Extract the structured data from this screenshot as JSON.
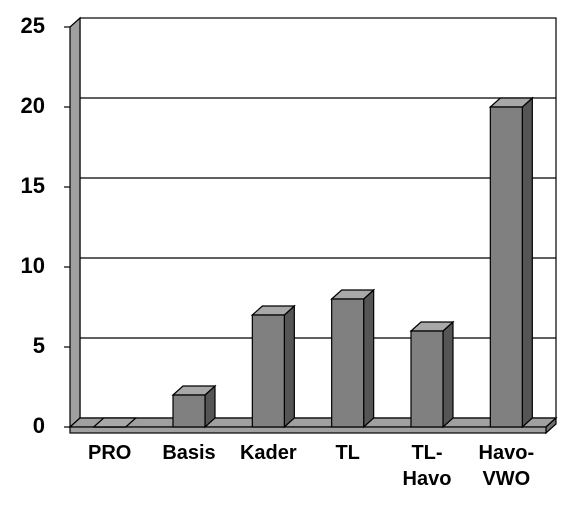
{
  "chart_data": {
    "type": "bar3d",
    "categories": [
      "PRO",
      "Basis",
      "Kader",
      "TL",
      "TL-Havo",
      "Havo-VWO"
    ],
    "values": [
      0,
      2,
      7,
      8,
      6,
      20
    ],
    "color": "#808080",
    "ylim": [
      0,
      25
    ],
    "yticks": [
      0,
      5,
      10,
      15,
      20,
      25
    ],
    "grid": true
  }
}
